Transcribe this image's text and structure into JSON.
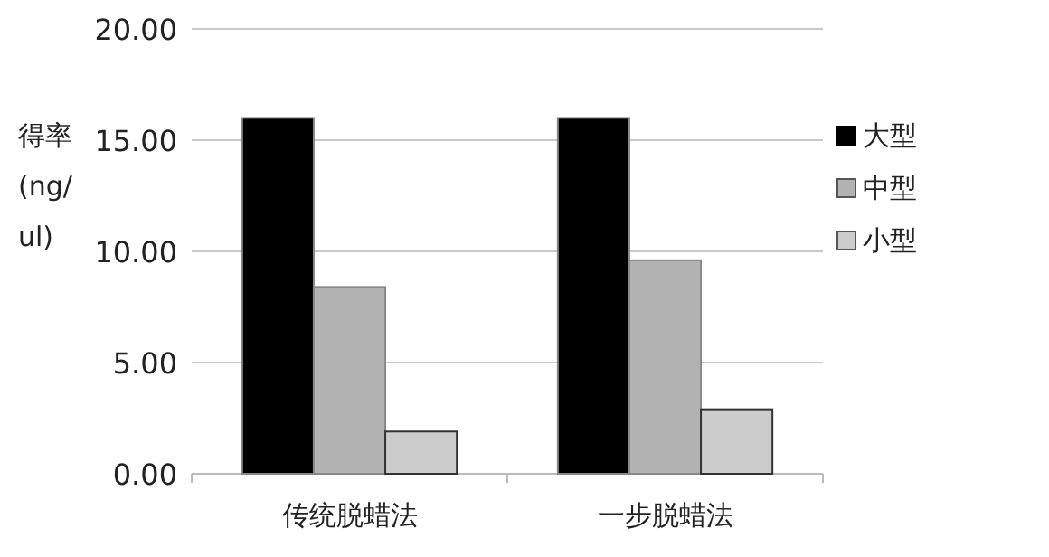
{
  "chart_data": {
    "type": "bar",
    "ylabel": "得率(ng/ul)",
    "categories": [
      "传统脱蜡法",
      "一步脱蜡法"
    ],
    "series": [
      {
        "name": "大型",
        "color": "#000000",
        "values": [
          16.0,
          16.0
        ]
      },
      {
        "name": "中型",
        "color": "#b2b2b2",
        "values": [
          8.4,
          9.6
        ]
      },
      {
        "name": "小型",
        "color": "#cccccc",
        "values": [
          1.9,
          2.9
        ]
      }
    ],
    "ylim": [
      0,
      20
    ],
    "yticks": [
      {
        "value": 0,
        "label": "0.00"
      },
      {
        "value": 5,
        "label": "5.00"
      },
      {
        "value": 10,
        "label": "10.00"
      },
      {
        "value": 15,
        "label": "15.00"
      },
      {
        "value": 20,
        "label": "20.00"
      }
    ],
    "grid": "y",
    "legend": "right"
  }
}
